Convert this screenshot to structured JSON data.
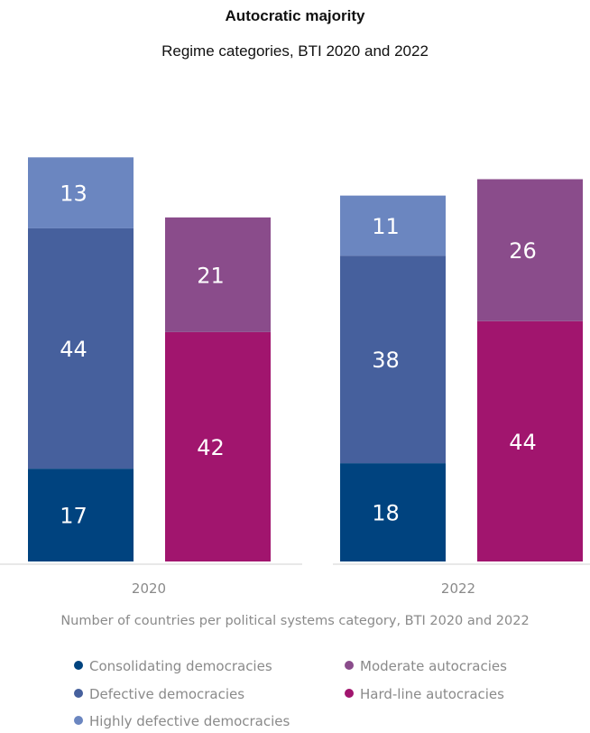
{
  "title": "Autocratic majority",
  "subtitle": "Regime categories, BTI 2020 and 2022",
  "caption": "Number of countries per political systems category,  BTI 2020 and 2022",
  "chart_data": {
    "type": "bar",
    "stacked": true,
    "groups": [
      "2020",
      "2022"
    ],
    "bars_per_group": [
      "democracies",
      "autocracies"
    ],
    "series": [
      {
        "name": "Consolidating democracies",
        "stack": "democracies",
        "color": "#00437f",
        "values": [
          17,
          18
        ]
      },
      {
        "name": "Defective democracies",
        "stack": "democracies",
        "color": "#46609d",
        "values": [
          44,
          38
        ]
      },
      {
        "name": "Highly defective democracies",
        "stack": "democracies",
        "color": "#6b86c0",
        "values": [
          13,
          11
        ]
      },
      {
        "name": "Hard-line autocracies",
        "stack": "autocracies",
        "color": "#a1156e",
        "values": [
          42,
          44
        ]
      },
      {
        "name": "Moderate autocracies",
        "stack": "autocracies",
        "color": "#8a4c8b",
        "values": [
          21,
          26
        ]
      }
    ],
    "grid": false,
    "legend_position": "bottom"
  },
  "legend": [
    {
      "label": "Consolidating democracies",
      "color": "#00437f"
    },
    {
      "label": "Moderate autocracies",
      "color": "#8a4c8b"
    },
    {
      "label": "Defective democracies",
      "color": "#46609d"
    },
    {
      "label": "Hard-line autocracies",
      "color": "#a1156e"
    },
    {
      "label": "Highly defective democracies",
      "color": "#6b86c0"
    }
  ]
}
